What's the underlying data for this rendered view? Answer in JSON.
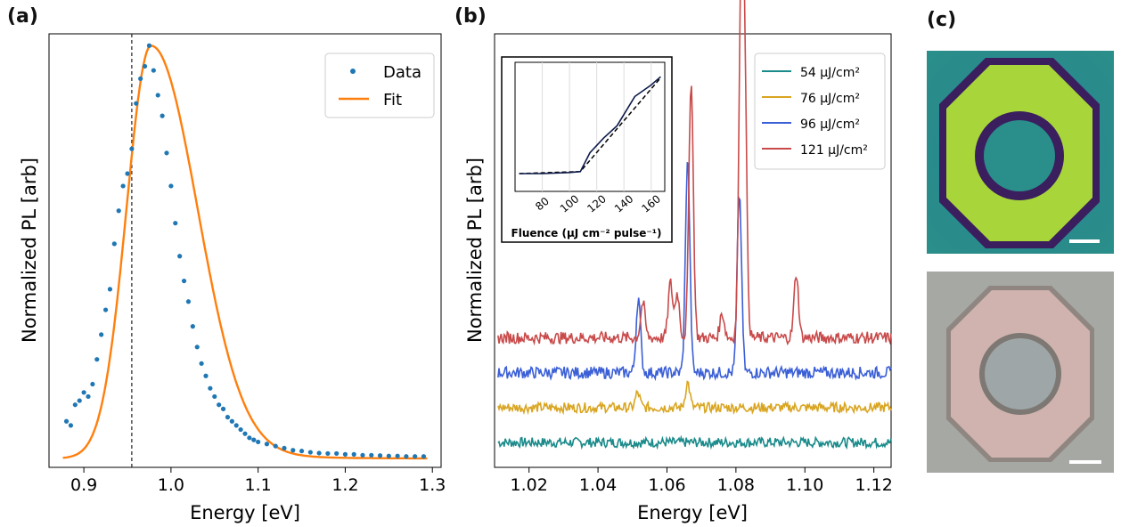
{
  "colors": {
    "data_points": "#1f77b4",
    "fit_line": "#ff7f0e",
    "s54": "#1a8a8a",
    "s76": "#d9a521",
    "s96": "#3b5fd6",
    "s121": "#c94a4a"
  },
  "panels": {
    "a": {
      "label": "(a)",
      "xlabel": "Energy [eV]",
      "ylabel": "Normalized PL [arb]",
      "xlim": [
        0.86,
        1.31
      ],
      "xticks": [
        "0.9",
        "1.0",
        "1.1",
        "1.2",
        "1.3"
      ],
      "legend": [
        "Data",
        "Fit"
      ]
    },
    "b": {
      "label": "(b)",
      "xlabel": "Energy [eV]",
      "ylabel": "Normalized PL [arb]",
      "xlim": [
        1.01,
        1.125
      ],
      "xticks": [
        "1.02",
        "1.04",
        "1.06",
        "1.08",
        "1.10",
        "1.12"
      ],
      "legend": [
        "54 μJ/cm²",
        "76 μJ/cm²",
        "96 μJ/cm²",
        "121 μJ/cm²"
      ],
      "inset": {
        "xlabel": "Fluence (μJ cm⁻² pulse⁻¹)",
        "xticks": [
          "80",
          "100",
          "120",
          "140",
          "160"
        ],
        "xlim": [
          60,
          170
        ]
      }
    },
    "c": {
      "label": "(c)",
      "top_image": "false-color PL map of octagonal ring",
      "bottom_image": "optical micrograph of octagonal ring"
    }
  },
  "chart_data": [
    {
      "type": "scatter",
      "title": "",
      "xlabel": "Energy [eV]",
      "ylabel": "Normalized PL [arb]",
      "xlim": [
        0.86,
        1.31
      ],
      "ylim": [
        0,
        1.02
      ],
      "legend_position": "top-right",
      "annotations": [
        {
          "type": "vertical-dashed-line",
          "x": 0.955
        }
      ],
      "series": [
        {
          "name": "Data",
          "kind": "scatter",
          "x": [
            0.88,
            0.885,
            0.89,
            0.895,
            0.9,
            0.905,
            0.91,
            0.915,
            0.92,
            0.925,
            0.93,
            0.935,
            0.94,
            0.945,
            0.95,
            0.955,
            0.96,
            0.965,
            0.97,
            0.975,
            0.98,
            0.985,
            0.99,
            0.995,
            1.0,
            1.005,
            1.01,
            1.015,
            1.02,
            1.025,
            1.03,
            1.035,
            1.04,
            1.045,
            1.05,
            1.055,
            1.06,
            1.065,
            1.07,
            1.075,
            1.08,
            1.085,
            1.09,
            1.095,
            1.1,
            1.11,
            1.12,
            1.13,
            1.14,
            1.15,
            1.16,
            1.17,
            1.18,
            1.19,
            1.2,
            1.21,
            1.22,
            1.23,
            1.24,
            1.25,
            1.26,
            1.27,
            1.28,
            1.29
          ],
          "y": [
            0.09,
            0.08,
            0.13,
            0.14,
            0.16,
            0.15,
            0.18,
            0.24,
            0.3,
            0.36,
            0.41,
            0.52,
            0.6,
            0.66,
            0.69,
            0.75,
            0.86,
            0.92,
            0.95,
            1.0,
            0.94,
            0.88,
            0.83,
            0.74,
            0.66,
            0.57,
            0.49,
            0.43,
            0.38,
            0.32,
            0.27,
            0.23,
            0.2,
            0.17,
            0.15,
            0.13,
            0.12,
            0.1,
            0.09,
            0.08,
            0.07,
            0.06,
            0.05,
            0.045,
            0.04,
            0.035,
            0.03,
            0.025,
            0.02,
            0.018,
            0.015,
            0.013,
            0.012,
            0.012,
            0.01,
            0.01,
            0.008,
            0.008,
            0.007,
            0.006,
            0.006,
            0.005,
            0.005,
            0.005
          ]
        },
        {
          "name": "Fit",
          "kind": "line",
          "function": "skewed peak",
          "peak_x": 0.977,
          "peak_y": 1.0
        }
      ]
    },
    {
      "type": "line",
      "title": "",
      "xlabel": "Energy [eV]",
      "ylabel": "Normalized PL [arb]",
      "xlim": [
        1.01,
        1.125
      ],
      "legend_position": "top-right",
      "series": [
        {
          "name": "54 μJ/cm²",
          "offset": 0.05,
          "noise": 0.01,
          "peaks": []
        },
        {
          "name": "76 μJ/cm²",
          "offset": 0.12,
          "noise": 0.01,
          "peaks": [
            {
              "x": 1.0515,
              "h": 0.03
            },
            {
              "x": 1.066,
              "h": 0.05
            }
          ]
        },
        {
          "name": "96 μJ/cm²",
          "offset": 0.19,
          "noise": 0.012,
          "peaks": [
            {
              "x": 1.0517,
              "h": 0.15
            },
            {
              "x": 1.066,
              "h": 0.43
            },
            {
              "x": 1.081,
              "h": 0.36
            }
          ]
        },
        {
          "name": "121 μJ/cm²",
          "offset": 0.26,
          "noise": 0.012,
          "peaks": [
            {
              "x": 1.053,
              "h": 0.07
            },
            {
              "x": 1.061,
              "h": 0.11
            },
            {
              "x": 1.063,
              "h": 0.09
            },
            {
              "x": 1.067,
              "h": 0.52
            },
            {
              "x": 1.076,
              "h": 0.05
            },
            {
              "x": 1.0815,
              "h": 0.67
            },
            {
              "x": 1.0825,
              "h": 0.5
            },
            {
              "x": 1.0975,
              "h": 0.13
            }
          ]
        }
      ]
    },
    {
      "type": "line",
      "title": "inset",
      "xlabel": "Fluence (μJ cm⁻² pulse⁻¹)",
      "xlim": [
        60,
        170
      ],
      "ylim": [
        0,
        1
      ],
      "series": [
        {
          "name": "measured",
          "x": [
            63,
            80,
            100,
            108,
            115,
            125,
            135,
            148,
            160,
            167
          ],
          "y": [
            0.0,
            0.0,
            0.01,
            0.02,
            0.2,
            0.34,
            0.46,
            0.74,
            0.85,
            0.93
          ]
        },
        {
          "name": "fit (dashed)",
          "x": [
            63,
            108,
            167
          ],
          "y": [
            0.0,
            0.02,
            0.92
          ]
        }
      ]
    }
  ]
}
